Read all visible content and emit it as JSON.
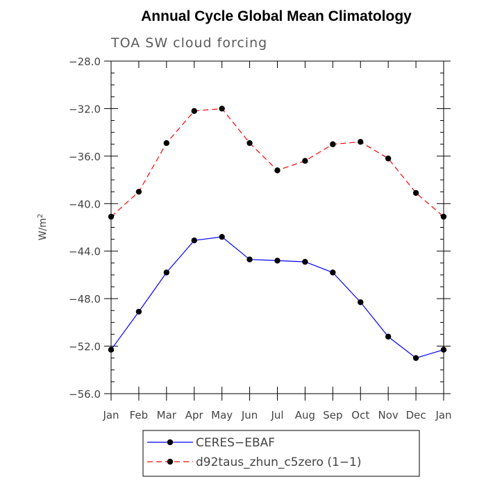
{
  "chart_data": {
    "type": "line",
    "title": "Annual Cycle Global Mean Climatology",
    "subtitle": "TOA SW cloud forcing",
    "ylabel": "W/m",
    "ylabel_superscript": "2",
    "categories": [
      "Jan",
      "Feb",
      "Mar",
      "Apr",
      "May",
      "Jun",
      "Jul",
      "Aug",
      "Sep",
      "Oct",
      "Nov",
      "Dec",
      "Jan"
    ],
    "yticks": [
      -28,
      -32,
      -36,
      -40,
      -44,
      -48,
      -52,
      -56
    ],
    "ytick_labels": [
      "−28.0",
      "−32.0",
      "−36.0",
      "−40.0",
      "−44.0",
      "−48.0",
      "−52.0",
      "−56.0"
    ],
    "ylim": [
      -56,
      -28
    ],
    "grid": false,
    "legend_position": "bottom",
    "series": [
      {
        "name": "CERES−EBAF",
        "color": "#0000ff",
        "dash": "solid",
        "values": [
          -52.3,
          -49.1,
          -45.8,
          -43.1,
          -42.8,
          -44.7,
          -44.8,
          -44.9,
          -45.8,
          -48.3,
          -51.2,
          -53.0,
          -52.3
        ]
      },
      {
        "name": "d92taus_zhun_c5zero (1−1)",
        "color": "#ff0000",
        "dash": "dashed",
        "values": [
          -41.1,
          -39.0,
          -34.9,
          -32.2,
          -32.0,
          -34.9,
          -37.2,
          -36.4,
          -35.0,
          -34.8,
          -36.2,
          -39.1,
          -41.1
        ]
      }
    ]
  }
}
